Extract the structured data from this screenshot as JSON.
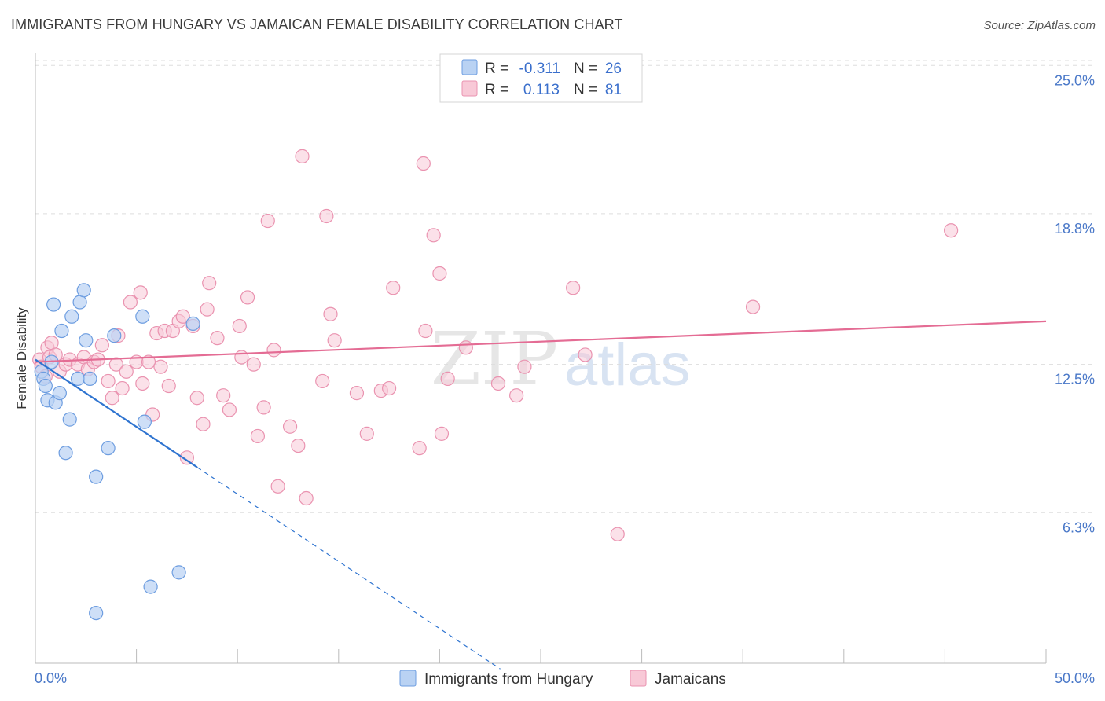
{
  "title": "IMMIGRANTS FROM HUNGARY VS JAMAICAN FEMALE DISABILITY CORRELATION CHART",
  "source": "Source: ZipAtlas.com",
  "watermark": {
    "zip": "ZIP",
    "atlas": "atlas"
  },
  "colors": {
    "blue_fill": "#b9d2f3",
    "blue_stroke": "#6d9de0",
    "blue_line": "#2f74d0",
    "pink_fill": "#f8c9d7",
    "pink_stroke": "#ea93b0",
    "pink_line": "#e46c94",
    "tick_color": "#4a78c8",
    "grid": "#dddddd"
  },
  "legend": {
    "rows": [
      {
        "r_label": "R =",
        "r_value": "-0.311",
        "n_label": "N =",
        "n_value": "26"
      },
      {
        "r_label": "R =",
        "r_value": "0.113",
        "n_label": "N =",
        "n_value": "81"
      }
    ]
  },
  "bottom_legend": [
    "Immigrants from Hungary",
    "Jamaicans"
  ],
  "chart_data": {
    "type": "scatter",
    "title": "IMMIGRANTS FROM HUNGARY VS JAMAICAN FEMALE DISABILITY CORRELATION CHART",
    "xlabel": "",
    "ylabel": "Female Disability",
    "xlim": [
      0,
      50
    ],
    "ylim": [
      0,
      25.6
    ],
    "x_tick_labels": [
      "0.0%",
      "50.0%"
    ],
    "y_ticks": [
      6.3,
      12.5,
      18.8,
      25.0
    ],
    "y_tick_labels": [
      "6.3%",
      "12.5%",
      "18.8%",
      "25.0%"
    ],
    "grid": "horizontal dashed",
    "legend_position": "top-center",
    "series": [
      {
        "name": "Immigrants from Hungary",
        "r": -0.311,
        "n": 26,
        "trend": {
          "x0": 0.0,
          "y0": 12.7,
          "x1": 8.0,
          "y1": 8.2,
          "dashed_to_x": 23.0
        },
        "points": [
          [
            0.3,
            12.2
          ],
          [
            0.4,
            11.9
          ],
          [
            0.5,
            11.6
          ],
          [
            0.6,
            11.0
          ],
          [
            0.8,
            12.6
          ],
          [
            0.9,
            15.0
          ],
          [
            1.0,
            10.9
          ],
          [
            1.2,
            11.3
          ],
          [
            1.3,
            13.9
          ],
          [
            1.5,
            8.8
          ],
          [
            1.7,
            10.2
          ],
          [
            1.8,
            14.5
          ],
          [
            2.1,
            11.9
          ],
          [
            2.2,
            15.1
          ],
          [
            2.4,
            15.6
          ],
          [
            2.5,
            13.5
          ],
          [
            2.7,
            11.9
          ],
          [
            3.0,
            7.8
          ],
          [
            3.0,
            2.1
          ],
          [
            3.6,
            9.0
          ],
          [
            3.9,
            13.7
          ],
          [
            5.3,
            14.5
          ],
          [
            5.4,
            10.1
          ],
          [
            5.7,
            3.2
          ],
          [
            7.1,
            3.8
          ],
          [
            7.8,
            14.2
          ]
        ]
      },
      {
        "name": "Jamaicans",
        "r": 0.113,
        "n": 81,
        "trend": {
          "x0": 0.0,
          "y0": 12.6,
          "x1": 50.0,
          "y1": 14.3
        },
        "points": [
          [
            0.2,
            12.7
          ],
          [
            0.3,
            12.4
          ],
          [
            0.5,
            12.0
          ],
          [
            0.6,
            13.2
          ],
          [
            0.7,
            12.8
          ],
          [
            0.8,
            13.4
          ],
          [
            1.0,
            12.9
          ],
          [
            1.2,
            12.2
          ],
          [
            1.5,
            12.5
          ],
          [
            1.7,
            12.7
          ],
          [
            2.1,
            12.5
          ],
          [
            2.4,
            12.8
          ],
          [
            2.6,
            12.3
          ],
          [
            2.9,
            12.6
          ],
          [
            3.1,
            12.7
          ],
          [
            3.3,
            13.3
          ],
          [
            3.6,
            11.8
          ],
          [
            3.8,
            11.1
          ],
          [
            4.0,
            12.5
          ],
          [
            4.1,
            13.7
          ],
          [
            4.3,
            11.5
          ],
          [
            4.5,
            12.2
          ],
          [
            4.7,
            15.1
          ],
          [
            5.0,
            12.6
          ],
          [
            5.2,
            15.5
          ],
          [
            5.3,
            11.7
          ],
          [
            5.6,
            12.6
          ],
          [
            5.8,
            10.4
          ],
          [
            6.0,
            13.8
          ],
          [
            6.2,
            12.4
          ],
          [
            6.4,
            13.9
          ],
          [
            6.6,
            11.6
          ],
          [
            6.8,
            13.9
          ],
          [
            7.1,
            14.3
          ],
          [
            7.3,
            14.5
          ],
          [
            7.5,
            8.6
          ],
          [
            7.8,
            14.1
          ],
          [
            8.0,
            11.1
          ],
          [
            8.3,
            10.0
          ],
          [
            8.5,
            14.8
          ],
          [
            8.6,
            15.9
          ],
          [
            9.0,
            13.6
          ],
          [
            9.3,
            11.2
          ],
          [
            9.6,
            10.6
          ],
          [
            10.1,
            14.1
          ],
          [
            10.2,
            12.8
          ],
          [
            10.5,
            15.3
          ],
          [
            10.8,
            12.5
          ],
          [
            11.0,
            9.5
          ],
          [
            11.3,
            10.7
          ],
          [
            11.5,
            18.5
          ],
          [
            11.8,
            13.1
          ],
          [
            12.0,
            7.4
          ],
          [
            12.6,
            9.9
          ],
          [
            13.0,
            9.1
          ],
          [
            13.2,
            21.2
          ],
          [
            13.4,
            6.9
          ],
          [
            14.2,
            11.8
          ],
          [
            14.4,
            18.7
          ],
          [
            14.6,
            14.6
          ],
          [
            14.8,
            13.5
          ],
          [
            15.9,
            11.3
          ],
          [
            16.4,
            9.6
          ],
          [
            17.1,
            11.4
          ],
          [
            17.5,
            11.5
          ],
          [
            17.7,
            15.7
          ],
          [
            19.0,
            9.0
          ],
          [
            19.2,
            20.9
          ],
          [
            19.3,
            13.9
          ],
          [
            19.7,
            17.9
          ],
          [
            20.0,
            16.3
          ],
          [
            20.1,
            9.6
          ],
          [
            20.4,
            11.9
          ],
          [
            21.3,
            13.2
          ],
          [
            22.9,
            11.7
          ],
          [
            23.8,
            11.2
          ],
          [
            24.2,
            12.4
          ],
          [
            26.6,
            15.7
          ],
          [
            27.2,
            12.9
          ],
          [
            28.8,
            5.4
          ],
          [
            35.5,
            14.9
          ],
          [
            45.3,
            18.1
          ]
        ]
      }
    ]
  }
}
